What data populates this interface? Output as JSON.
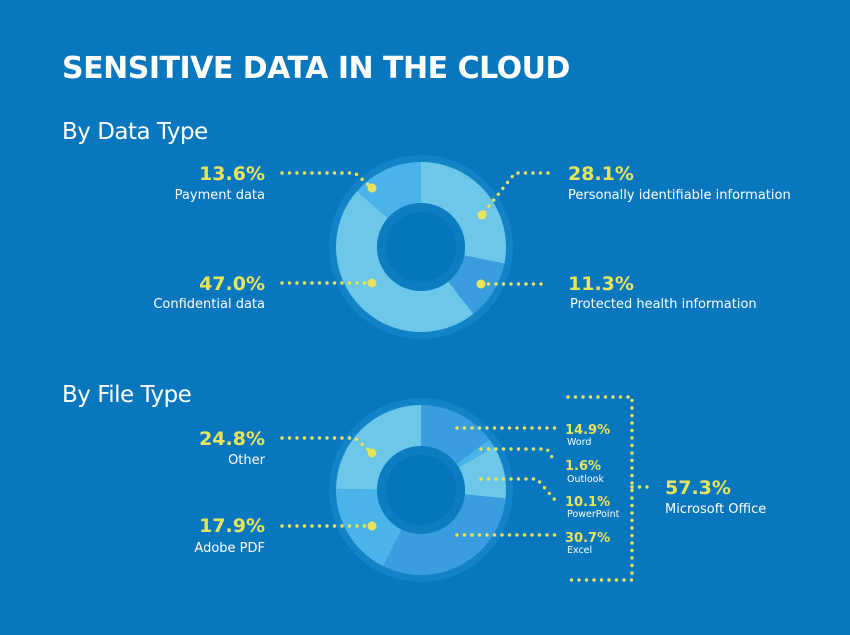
{
  "title": "SENSITIVE DATA IN THE CLOUD",
  "chart_data": [
    {
      "type": "pie",
      "title": "By Data Type",
      "unit": "%",
      "categories": [
        "Personally identifiable information",
        "Protected health information",
        "Confidential data",
        "Payment data"
      ],
      "values": [
        28.1,
        11.3,
        47.0,
        13.6
      ],
      "labels": [
        "28.1%",
        "11.3%",
        "47.0%",
        "13.6%"
      ],
      "colors": [
        "#6cc7e9",
        "#3a9ddf",
        "#6cc7e9",
        "#49b3ea"
      ]
    },
    {
      "type": "pie",
      "title": "By File Type",
      "unit": "%",
      "categories": [
        "Word",
        "Outlook",
        "PowerPoint",
        "Excel",
        "Adobe PDF",
        "Other"
      ],
      "values": [
        14.9,
        1.6,
        10.1,
        30.7,
        17.9,
        24.8
      ],
      "labels": [
        "14.9%",
        "1.6%",
        "10.1%",
        "30.7%",
        "17.9%",
        "24.8%"
      ],
      "colors": [
        "#3a9ddf",
        "#49b3ea",
        "#6cc7e9",
        "#3a9ddf",
        "#49b3ea",
        "#6cc7e9"
      ],
      "group": {
        "label": "Microsoft Office",
        "value": "57.3%"
      }
    }
  ],
  "colors": {
    "background": "#0877bd",
    "accent": "#e8e45c"
  }
}
